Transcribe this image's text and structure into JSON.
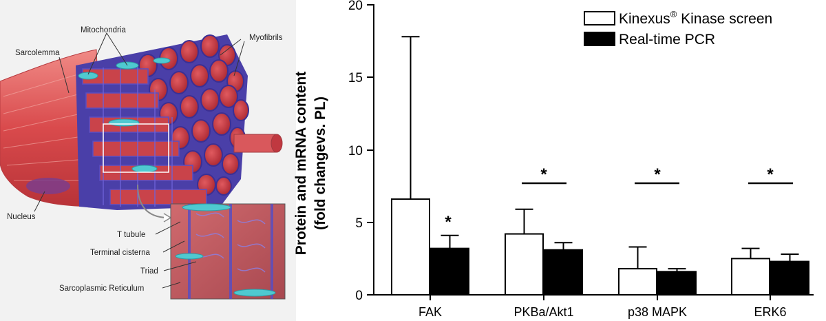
{
  "illustration": {
    "labels": {
      "sarcolemma": "Sarcolemma",
      "mitochondria": "Mitochondria",
      "myofibrils": "Myofibrils",
      "nucleus": "Nucleus",
      "t_tubule": "T tubule",
      "terminal_cisterna": "Terminal cisterna",
      "triad": "Triad",
      "sarcoplasmic_reticulum": "Sarcoplasmic Reticulum"
    },
    "colors": {
      "muscle": "#d94a4c",
      "fibril_end": "#c8323a",
      "reticulum": "#5a4ec0",
      "mitochondria": "#4fc9d0",
      "background": "#f0f0f0"
    }
  },
  "chart_data": {
    "type": "bar",
    "title": "",
    "xlabel": "",
    "ylabel_line1": "Protein and mRNA content",
    "ylabel_line2": "(fold changevs. PL)",
    "ylim": [
      0,
      20
    ],
    "yticks": [
      "0",
      "5",
      "10",
      "15",
      "20"
    ],
    "categories": [
      "FAK",
      "PKBa/Akt1",
      "p38 MAPK",
      "ERK6"
    ],
    "series": [
      {
        "name": "Kinexus",
        "name_sup": "®",
        "name_rest": " Kinase screen",
        "color": "#ffffff",
        "values": [
          6.6,
          4.2,
          1.8,
          2.5
        ],
        "errors": [
          11.2,
          1.7,
          1.5,
          0.7
        ]
      },
      {
        "name": "Real-time PCR",
        "color": "#000000",
        "values": [
          3.2,
          3.1,
          1.6,
          2.3
        ],
        "errors": [
          0.9,
          0.5,
          0.2,
          0.5
        ]
      }
    ],
    "significance": {
      "marker": "*",
      "fak": "*",
      "pkb": "*",
      "p38": "*",
      "erk6": "*"
    },
    "legend_position": "top-right",
    "grid": false
  }
}
